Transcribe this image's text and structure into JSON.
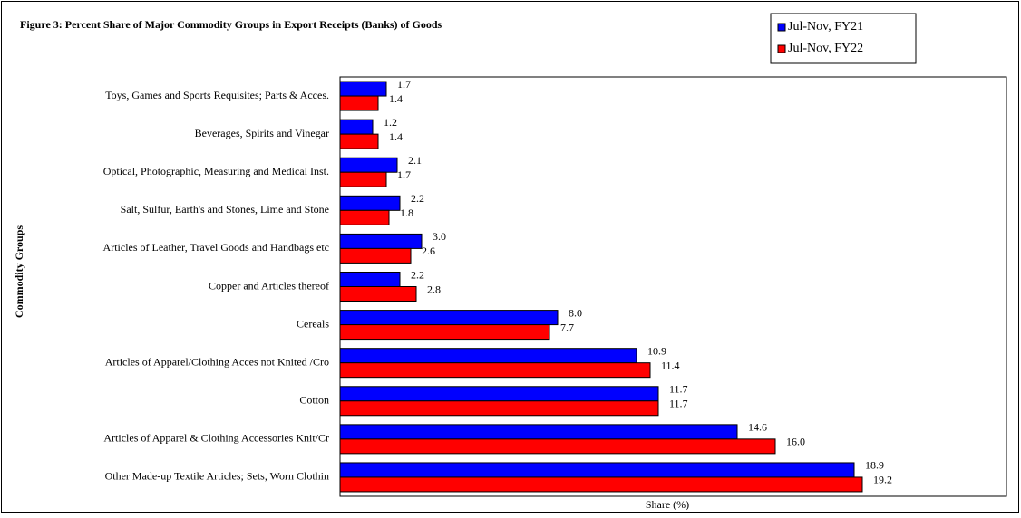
{
  "chart_data": {
    "type": "hbar",
    "title": "Figure 3: Percent Share of Major Commodity  Groups  in Export  Receipts  (Banks) of Goods",
    "x_label": "Share (%)",
    "y_label": "Commodity Groups",
    "categories": [
      "Toys, Games and Sports Requisites; Parts & Acces.",
      "Beverages, Spirits and Vinegar",
      "Optical, Photographic, Measuring and Medical Inst.",
      "Salt, Sulfur, Earth's and Stones, Lime and Stone",
      "Articles of Leather, Travel Goods and Handbags etc",
      "Copper and Articles thereof",
      "Cereals",
      "Articles of Apparel/Clothing Acces not Knited /Cro",
      "Cotton",
      "Articles of Apparel & Clothing Accessories Knit/Cr",
      "Other Made-up Textile Articles; Sets, Worn Clothin"
    ],
    "series": [
      {
        "name": "Jul-Nov, FY21",
        "color": "#0000ff",
        "values": [
          1.7,
          1.2,
          2.1,
          2.2,
          3.0,
          2.2,
          8.0,
          10.9,
          11.7,
          14.6,
          18.9
        ],
        "value_labels": [
          "1.7",
          "1.2",
          "2.1",
          "2.2",
          "3.0",
          "2.2",
          "8.0",
          "10.9",
          "11.7",
          "14.6",
          "18.9"
        ]
      },
      {
        "name": "Jul-Nov, FY22",
        "color": "#ff0000",
        "values": [
          1.4,
          1.4,
          1.7,
          1.8,
          2.6,
          2.8,
          7.7,
          11.4,
          11.7,
          16.0,
          19.2
        ],
        "value_labels": [
          "1.4",
          "1.4",
          "1.7",
          "1.8",
          "2.6",
          "2.8",
          "7.7",
          "11.4",
          "11.7",
          "16.0",
          "19.2"
        ]
      }
    ],
    "xlim": [
      0,
      24.5
    ],
    "legend": "top-right"
  }
}
